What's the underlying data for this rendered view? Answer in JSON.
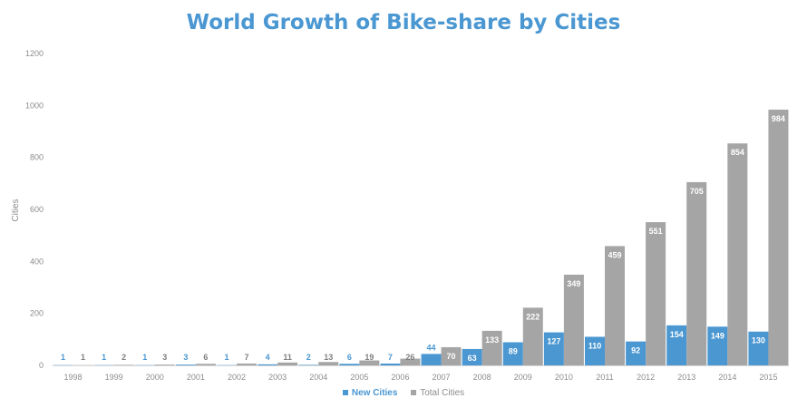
{
  "chart_data": {
    "type": "bar",
    "title": "World Growth of Bike-share by Cities",
    "ylabel": "Cities",
    "xlabel": "",
    "ylim": [
      0,
      1200
    ],
    "yticks": [
      0,
      200,
      400,
      600,
      800,
      1000,
      1200
    ],
    "grid": false,
    "legend_position": "bottom",
    "categories": [
      "1998",
      "1999",
      "2000",
      "2001",
      "2002",
      "2003",
      "2004",
      "2005",
      "2006",
      "2007",
      "2008",
      "2009",
      "2010",
      "2011",
      "2012",
      "2013",
      "2014",
      "2015"
    ],
    "series": [
      {
        "name": "New Cities",
        "color": "#4a97d2",
        "values": [
          1,
          1,
          1,
          3,
          1,
          4,
          2,
          6,
          7,
          44,
          63,
          89,
          127,
          110,
          92,
          154,
          149,
          130
        ]
      },
      {
        "name": "Total Cities",
        "color": "#a5a5a5",
        "values": [
          1,
          2,
          3,
          6,
          7,
          11,
          13,
          19,
          26,
          70,
          133,
          222,
          349,
          459,
          551,
          705,
          854,
          984
        ]
      }
    ]
  }
}
